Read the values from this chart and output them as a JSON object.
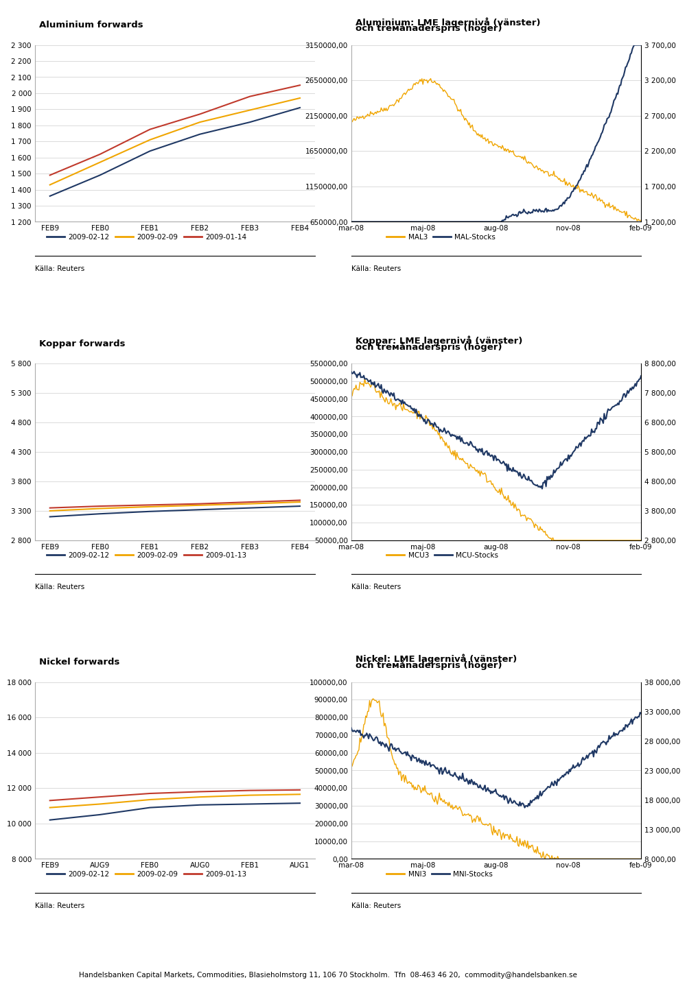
{
  "background_color": "#ffffff",
  "panel_title_bg": "#d8d8d8",
  "plot_bg": "#ffffff",
  "grid_color": "#cccccc",
  "al_fwd": {
    "title": "Aluminium forwards",
    "xticks": [
      "FEB9",
      "FEB0",
      "FEB1",
      "FEB2",
      "FEB3",
      "FEB4"
    ],
    "ylim": [
      1200,
      2300
    ],
    "yticks": [
      1200,
      1300,
      1400,
      1500,
      1600,
      1700,
      1800,
      1900,
      2000,
      2100,
      2200,
      2300
    ],
    "series": {
      "2009-02-12": {
        "color": "#1f3864",
        "values": [
          1360,
          1490,
          1640,
          1745,
          1820,
          1910
        ]
      },
      "2009-02-09": {
        "color": "#f0a500",
        "values": [
          1430,
          1570,
          1710,
          1820,
          1895,
          1970
        ]
      },
      "2009-01-14": {
        "color": "#c0392b",
        "values": [
          1490,
          1620,
          1775,
          1870,
          1980,
          2050
        ]
      }
    },
    "legend": [
      "2009-02-12",
      "2009-02-09",
      "2009-01-14"
    ],
    "source": "Källa: Reuters"
  },
  "al_lme": {
    "title": "Aluminium: LME lagernivå (vänster)\noch treånaderspris (höger)",
    "title_line1": "Aluminium: LME lagernivå (vänster)",
    "title_line2": "och trемånaderspris (höger)",
    "xticks": [
      "mar-08",
      "maj-08",
      "aug-08",
      "nov-08",
      "feb-09"
    ],
    "ylim_left": [
      650000,
      3150000
    ],
    "ylim_right": [
      1200,
      3700
    ],
    "yticks_left": [
      650000,
      1150000,
      1650000,
      2150000,
      2650000,
      3150000
    ],
    "yticks_right": [
      1200,
      1700,
      2200,
      2700,
      3200,
      3700
    ],
    "stocks_color": "#f0a500",
    "price_color": "#1f3864",
    "legend_stocks": "MAL3",
    "legend_price": "MAL-Stocks",
    "source": "Källa: Reuters"
  },
  "cu_fwd": {
    "title": "Koppar forwards",
    "xticks": [
      "FEB9",
      "FEB0",
      "FEB1",
      "FEB2",
      "FEB3",
      "FEB4"
    ],
    "ylim": [
      2800,
      5800
    ],
    "yticks": [
      2800,
      3300,
      3800,
      4300,
      4800,
      5300,
      5800
    ],
    "series": {
      "2009-02-12": {
        "color": "#1f3864",
        "values": [
          3200,
          3250,
          3290,
          3320,
          3350,
          3380
        ]
      },
      "2009-02-09": {
        "color": "#f0a500",
        "values": [
          3300,
          3340,
          3370,
          3395,
          3420,
          3450
        ]
      },
      "2009-01-13": {
        "color": "#c0392b",
        "values": [
          3350,
          3380,
          3400,
          3420,
          3450,
          3480
        ]
      }
    },
    "legend": [
      "2009-02-12",
      "2009-02-09",
      "2009-01-13"
    ],
    "source": "Källa: Reuters"
  },
  "cu_lme": {
    "title": "Koppar: LME lagernivå (vänster)\noch trемånaderspris (höger)",
    "title_line1": "Koppar: LME lagernivå (vänster)",
    "title_line2": "och trемånaderspris (höger)",
    "xticks": [
      "mar-08",
      "maj-08",
      "aug-08",
      "nov-08",
      "feb-09"
    ],
    "ylim_left": [
      50000,
      550000
    ],
    "ylim_right": [
      2800,
      8800
    ],
    "yticks_left": [
      50000,
      100000,
      150000,
      200000,
      250000,
      300000,
      350000,
      400000,
      450000,
      500000,
      550000
    ],
    "yticks_right": [
      2800,
      3800,
      4800,
      5800,
      6800,
      7800,
      8800
    ],
    "stocks_color": "#f0a500",
    "price_color": "#1f3864",
    "legend_stocks": "MCU3",
    "legend_price": "MCU-Stocks",
    "source": "Källa: Reuters"
  },
  "ni_fwd": {
    "title": "Nickel forwards",
    "xticks": [
      "FEB9",
      "AUG9",
      "FEB0",
      "AUG0",
      "FEB1",
      "AUG1"
    ],
    "ylim": [
      8000,
      18000
    ],
    "yticks": [
      8000,
      10000,
      12000,
      14000,
      16000,
      18000
    ],
    "series": {
      "2009-02-12": {
        "color": "#1f3864",
        "values": [
          10200,
          10500,
          10900,
          11050,
          11100,
          11150
        ]
      },
      "2009-02-09": {
        "color": "#f0a500",
        "values": [
          10900,
          11100,
          11350,
          11500,
          11600,
          11650
        ]
      },
      "2009-01-13": {
        "color": "#c0392b",
        "values": [
          11300,
          11500,
          11700,
          11800,
          11870,
          11900
        ]
      }
    },
    "legend": [
      "2009-02-12",
      "2009-02-09",
      "2009-01-13"
    ],
    "source": "Källa: Reuters"
  },
  "ni_lme": {
    "title": "Nickel: LME lagernivå (vänster)\noch trемånaderspris (höger)",
    "title_line1": "Nickel: LME lagernivå (vänster)",
    "title_line2": "och trемånaderspris (höger)",
    "xticks": [
      "mar-08",
      "maj-08",
      "aug-08",
      "nov-08",
      "feb-09"
    ],
    "ylim_left": [
      0,
      100000
    ],
    "ylim_right": [
      8000,
      38000
    ],
    "yticks_left": [
      0,
      10000,
      20000,
      30000,
      40000,
      50000,
      60000,
      70000,
      80000,
      90000,
      100000
    ],
    "yticks_right": [
      8000,
      13000,
      18000,
      23000,
      28000,
      33000,
      38000
    ],
    "stocks_color": "#f0a500",
    "price_color": "#1f3864",
    "legend_stocks": "MNI3",
    "legend_price": "MNI-Stocks",
    "source": "Källa: Reuters"
  },
  "footer": "Handelsbanken Capital Markets, Commodities, Blasieholmstorg 11, 106 70 Stockholm.  Tfn  08-463 46 20,  commodity@handelsbanken.se"
}
